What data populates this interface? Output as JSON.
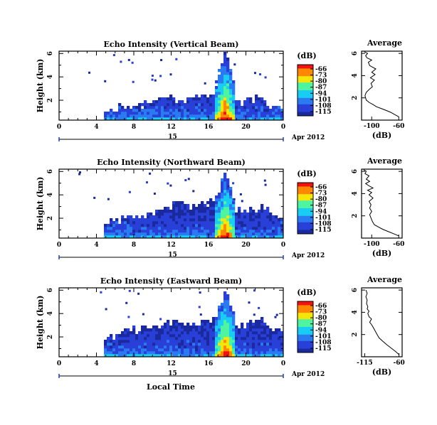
{
  "figure": {
    "local_time_label": "Local Time",
    "date_label": "Apr 2012",
    "day_label": "15"
  },
  "chart_data": [
    {
      "type": "heatmap",
      "title": "Echo Intensity (Vertical Beam)",
      "xlabel": "",
      "ylabel": "Height (km)",
      "x_ticks": [
        "0",
        "4",
        "8",
        "12",
        "16",
        "20",
        "0"
      ],
      "xlim": [
        0,
        24
      ],
      "y_ticks": [
        "2",
        "4",
        "6"
      ],
      "ylim": [
        0.3,
        6.2
      ],
      "colorbar": {
        "label": "(dB)",
        "ticks": [
          "-66",
          "-73",
          "-80",
          "-87",
          "-94",
          "-101",
          "-108",
          "-115"
        ],
        "range": [
          -115,
          -66
        ],
        "colors": [
          "#f31212",
          "#ff8800",
          "#f5e60a",
          "#4ff4a0",
          "#18ccf3",
          "#2a7bf2",
          "#2840d8",
          "#1a2a9e"
        ]
      },
      "echo_onset_hour": 4.8,
      "base_top_km": [
        [
          4.8,
          1.5
        ],
        [
          6,
          1.6
        ],
        [
          8,
          1.8
        ],
        [
          10,
          2.1
        ],
        [
          11.5,
          2.6
        ],
        [
          12.5,
          2.0
        ],
        [
          14,
          2.3
        ],
        [
          16,
          2.6
        ],
        [
          17.3,
          2.9
        ],
        [
          18.5,
          1.8
        ],
        [
          20,
          2.2
        ],
        [
          21.5,
          2.6
        ],
        [
          22.5,
          1.8
        ],
        [
          24,
          1.4
        ]
      ],
      "convection": {
        "start_hour": 16.5,
        "end_hour": 18.8,
        "peak_top_km": 6.2
      },
      "average_profile": {
        "title": "Average",
        "xlabel": "(dB)",
        "x_ticks": [
          "-100",
          "-60"
        ],
        "xlim": [
          -115,
          -55
        ],
        "y_ticks": [
          "2",
          "4",
          "6"
        ],
        "ylim": [
          0,
          6.2
        ],
        "points": [
          [
            -60,
            0.3
          ],
          [
            -66,
            0.5
          ],
          [
            -72,
            0.7
          ],
          [
            -80,
            0.9
          ],
          [
            -86,
            1.05
          ],
          [
            -93,
            1.2
          ],
          [
            -98,
            1.4
          ],
          [
            -104,
            1.6
          ],
          [
            -108,
            1.8
          ],
          [
            -110,
            2.2
          ],
          [
            -108,
            2.5
          ],
          [
            -103,
            2.8
          ],
          [
            -99,
            3.0
          ],
          [
            -101,
            3.3
          ],
          [
            -96,
            3.6
          ],
          [
            -102,
            3.8
          ],
          [
            -95,
            4.1
          ],
          [
            -100,
            4.3
          ],
          [
            -94,
            4.6
          ],
          [
            -103,
            4.9
          ],
          [
            -105,
            5.2
          ],
          [
            -100,
            5.4
          ],
          [
            -107,
            5.6
          ],
          [
            -109,
            5.8
          ],
          [
            -106,
            6.0
          ],
          [
            -111,
            6.15
          ]
        ]
      }
    },
    {
      "type": "heatmap",
      "title": "Echo Intensity (Northward Beam)",
      "xlabel": "",
      "ylabel": "Height (km)",
      "x_ticks": [
        "0",
        "4",
        "8",
        "12",
        "16",
        "20",
        "0"
      ],
      "xlim": [
        0,
        24
      ],
      "y_ticks": [
        "2",
        "4",
        "6"
      ],
      "ylim": [
        0.3,
        6.2
      ],
      "colorbar": {
        "label": "(dB)",
        "ticks": [
          "-66",
          "-73",
          "-80",
          "-87",
          "-94",
          "-101",
          "-108",
          "-115"
        ],
        "range": [
          -115,
          -66
        ],
        "colors": [
          "#f31212",
          "#ff8800",
          "#f5e60a",
          "#4ff4a0",
          "#18ccf3",
          "#2a7bf2",
          "#2840d8",
          "#1a2a9e"
        ]
      },
      "echo_onset_hour": 4.8,
      "base_top_km": [
        [
          4.8,
          1.8
        ],
        [
          6,
          2.0
        ],
        [
          8,
          2.4
        ],
        [
          10,
          2.8
        ],
        [
          11.5,
          3.2
        ],
        [
          12.5,
          3.6
        ],
        [
          14,
          3.0
        ],
        [
          16,
          3.5
        ],
        [
          17.3,
          4.2
        ],
        [
          18.5,
          2.8
        ],
        [
          20,
          2.9
        ],
        [
          21.5,
          3.3
        ],
        [
          22.5,
          2.6
        ],
        [
          24,
          2.3
        ]
      ],
      "convection": {
        "start_hour": 16.5,
        "end_hour": 18.8,
        "peak_top_km": 6.2
      },
      "average_profile": {
        "title": "Average",
        "xlabel": "(dB)",
        "x_ticks": [
          "-100",
          "-60"
        ],
        "xlim": [
          -115,
          -55
        ],
        "y_ticks": [
          "2",
          "4",
          "6"
        ],
        "ylim": [
          0,
          6.2
        ],
        "points": [
          [
            -60,
            0.2
          ],
          [
            -68,
            0.4
          ],
          [
            -76,
            0.6
          ],
          [
            -84,
            0.8
          ],
          [
            -90,
            1.0
          ],
          [
            -96,
            1.2
          ],
          [
            -99,
            1.5
          ],
          [
            -101,
            1.8
          ],
          [
            -103,
            2.1
          ],
          [
            -100,
            2.4
          ],
          [
            -103,
            2.7
          ],
          [
            -101,
            3.0
          ],
          [
            -104,
            3.3
          ],
          [
            -98,
            3.6
          ],
          [
            -104,
            3.9
          ],
          [
            -100,
            4.1
          ],
          [
            -106,
            4.3
          ],
          [
            -98,
            4.5
          ],
          [
            -104,
            4.7
          ],
          [
            -109,
            4.9
          ],
          [
            -103,
            5.1
          ],
          [
            -108,
            5.3
          ],
          [
            -104,
            5.6
          ],
          [
            -110,
            5.8
          ],
          [
            -108,
            6.0
          ],
          [
            -112,
            6.15
          ]
        ]
      }
    },
    {
      "type": "heatmap",
      "title": "Echo Intensity (Eastward Beam)",
      "xlabel": "Local Time",
      "ylabel": "Height (km)",
      "x_ticks": [
        "0",
        "4",
        "8",
        "12",
        "16",
        "20",
        "0"
      ],
      "xlim": [
        0,
        24
      ],
      "y_ticks": [
        "2",
        "4",
        "6"
      ],
      "ylim": [
        0.3,
        6.2
      ],
      "colorbar": {
        "label": "(dB)",
        "ticks": [
          "-66",
          "-73",
          "-80",
          "-87",
          "-94",
          "-101",
          "-108",
          "-115"
        ],
        "range": [
          -115,
          -66
        ],
        "colors": [
          "#f31212",
          "#ff8800",
          "#f5e60a",
          "#4ff4a0",
          "#18ccf3",
          "#2a7bf2",
          "#2840d8",
          "#1a2a9e"
        ]
      },
      "echo_onset_hour": 4.8,
      "base_top_km": [
        [
          4.8,
          2.2
        ],
        [
          6,
          2.4
        ],
        [
          8,
          2.8
        ],
        [
          10,
          3.0
        ],
        [
          11.5,
          3.3
        ],
        [
          12.5,
          3.6
        ],
        [
          14,
          3.2
        ],
        [
          16,
          3.6
        ],
        [
          17.3,
          4.0
        ],
        [
          18.5,
          3.0
        ],
        [
          20,
          3.3
        ],
        [
          21.5,
          3.6
        ],
        [
          22.5,
          3.0
        ],
        [
          24,
          2.6
        ]
      ],
      "convection": {
        "start_hour": 16.5,
        "end_hour": 18.8,
        "peak_top_km": 6.2
      },
      "average_profile": {
        "title": "Average",
        "xlabel": "(dB)",
        "x_ticks": [
          "-115",
          "-60"
        ],
        "xlim": [
          -120,
          -55
        ],
        "y_ticks": [
          "2",
          "4",
          "6"
        ],
        "ylim": [
          0,
          6.2
        ],
        "points": [
          [
            -60,
            0.2
          ],
          [
            -66,
            0.5
          ],
          [
            -73,
            0.8
          ],
          [
            -80,
            1.1
          ],
          [
            -86,
            1.4
          ],
          [
            -92,
            1.7
          ],
          [
            -95,
            2.0
          ],
          [
            -98,
            2.3
          ],
          [
            -101,
            2.6
          ],
          [
            -104,
            2.9
          ],
          [
            -107,
            3.1
          ],
          [
            -104,
            3.4
          ],
          [
            -108,
            3.6
          ],
          [
            -110,
            3.9
          ],
          [
            -108,
            4.1
          ],
          [
            -111,
            4.3
          ],
          [
            -110,
            4.5
          ],
          [
            -112,
            4.8
          ],
          [
            -111,
            5.1
          ],
          [
            -113,
            5.4
          ],
          [
            -111,
            5.7
          ],
          [
            -113,
            6.0
          ]
        ]
      }
    }
  ]
}
